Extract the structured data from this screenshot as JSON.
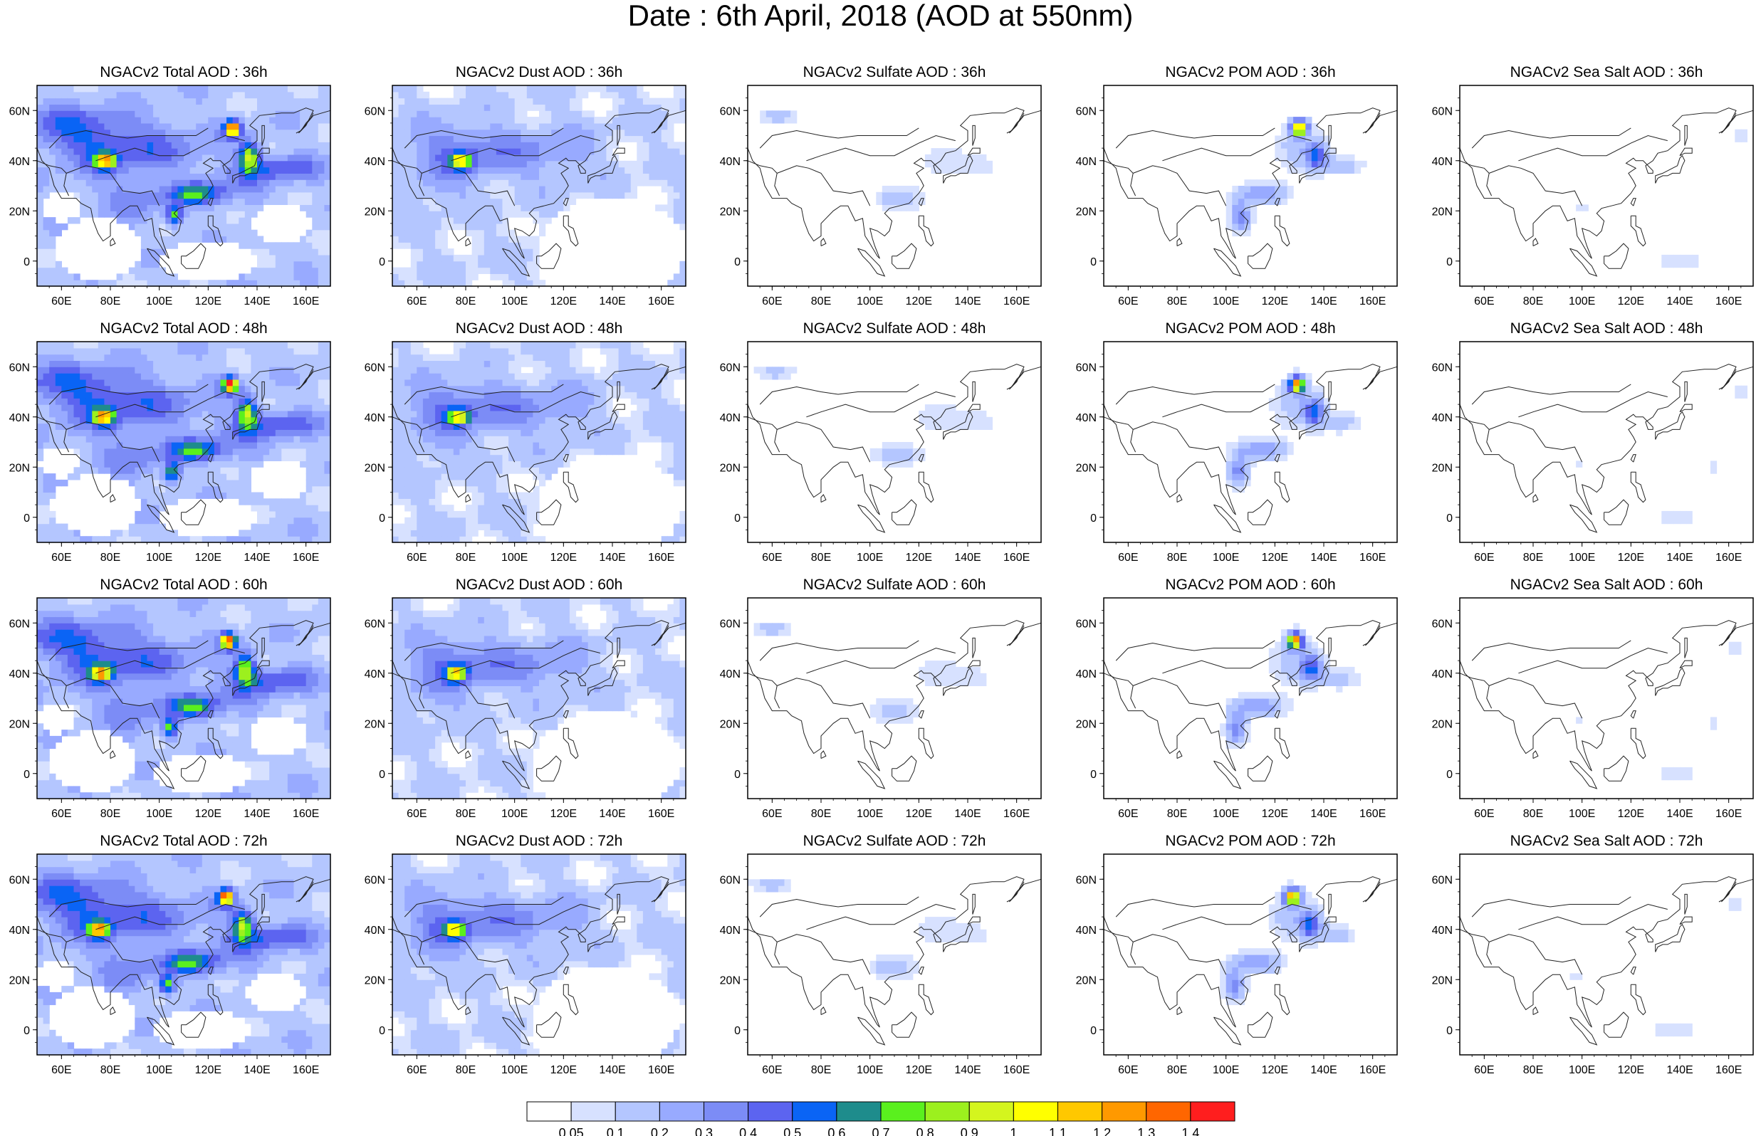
{
  "title": "Date : 6th April, 2018 (AOD at 550nm)",
  "colors": {
    "coast": "#222222",
    "frame": "#000000"
  },
  "map": {
    "lon_range": [
      50,
      170
    ],
    "lat_range": [
      -10,
      70
    ],
    "x_tick_labels": [
      "60E",
      "80E",
      "100E",
      "120E",
      "140E",
      "160E"
    ],
    "y_tick_labels": [
      "60N",
      "40N",
      "20N",
      "0"
    ]
  },
  "columns": [
    {
      "key": "total"
    },
    {
      "key": "dust"
    },
    {
      "key": "sulfate"
    },
    {
      "key": "pom"
    },
    {
      "key": "seasalt"
    }
  ],
  "rows": [
    {
      "hour": "36h",
      "titles": [
        "NGACv2 Total AOD : 36h",
        "NGACv2 Dust AOD : 36h",
        "NGACv2 Sulfate AOD : 36h",
        "NGACv2 POM AOD : 36h",
        "NGACv2 Sea Salt AOD : 36h"
      ]
    },
    {
      "hour": "48h",
      "titles": [
        "NGACv2 Total AOD : 48h",
        "NGACv2 Dust AOD : 48h",
        "NGACv2 Sulfate AOD : 48h",
        "NGACv2 POM AOD : 48h",
        "NGACv2 Sea Salt AOD : 48h"
      ]
    },
    {
      "hour": "60h",
      "titles": [
        "NGACv2 Total AOD : 60h",
        "NGACv2 Dust AOD : 60h",
        "NGACv2 Sulfate AOD : 60h",
        "NGACv2 POM AOD : 60h",
        "NGACv2 Sea Salt AOD : 60h"
      ]
    },
    {
      "hour": "72h",
      "titles": [
        "NGACv2 Total AOD : 72h",
        "NGACv2 Dust AOD : 72h",
        "NGACv2 Sulfate AOD : 72h",
        "NGACv2 POM AOD : 72h",
        "NGACv2 Sea Salt  AOD : 72h"
      ]
    }
  ],
  "colorbar": {
    "boundaries": [
      "0.05",
      "0.1",
      "0.2",
      "0.3",
      "0.4",
      "0.5",
      "0.6",
      "0.7",
      "0.8",
      "0.9",
      "1",
      "1.1",
      "1.2",
      "1.3",
      "1.4"
    ],
    "colors": [
      "#ffffff",
      "#d7e1ff",
      "#b4c6ff",
      "#98aaff",
      "#7c8cf6",
      "#5c64f0",
      "#0a64f5",
      "#1e8c8c",
      "#5af01e",
      "#9cf01e",
      "#d4f51e",
      "#ffff00",
      "#ffc800",
      "#ff9900",
      "#ff6600",
      "#ff1e1e"
    ]
  },
  "fields": {
    "total": {
      "base": 0.15,
      "blobs": [
        [
          60,
          55,
          25,
          8,
          0.25
        ],
        [
          75,
          45,
          20,
          10,
          0.25
        ],
        [
          100,
          45,
          25,
          10,
          0.2
        ],
        [
          78,
          40,
          4,
          3,
          0.9
        ],
        [
          130,
          53,
          3,
          3,
          1.3
        ],
        [
          137,
          42,
          4,
          6,
          0.7
        ],
        [
          150,
          37,
          15,
          5,
          0.35
        ],
        [
          115,
          27,
          10,
          4,
          0.5
        ],
        [
          106,
          18,
          3,
          4,
          0.6
        ],
        [
          90,
          25,
          15,
          8,
          0.2
        ],
        [
          130,
          30,
          15,
          8,
          0.15
        ]
      ],
      "clear": [
        [
          75,
          5,
          18,
          12
        ],
        [
          120,
          0,
          20,
          8
        ],
        [
          60,
          22,
          8,
          6
        ],
        [
          150,
          15,
          12,
          8
        ]
      ]
    },
    "dust": {
      "base": 0.1,
      "blobs": [
        [
          75,
          45,
          22,
          10,
          0.25
        ],
        [
          100,
          42,
          25,
          10,
          0.15
        ],
        [
          78,
          40,
          4,
          3,
          0.8
        ],
        [
          70,
          30,
          12,
          8,
          0.15
        ],
        [
          120,
          45,
          15,
          10,
          0.1
        ]
      ],
      "clear": [
        [
          140,
          5,
          30,
          20
        ],
        [
          125,
          10,
          12,
          8
        ]
      ]
    },
    "sulfate": {
      "base": 0.0,
      "blobs": [
        [
          62,
          58,
          8,
          3,
          0.15
        ],
        [
          112,
          25,
          10,
          5,
          0.15
        ],
        [
          130,
          40,
          10,
          6,
          0.1
        ],
        [
          145,
          38,
          8,
          5,
          0.08
        ]
      ],
      "clear": []
    },
    "pom": {
      "base": 0.0,
      "blobs": [
        [
          130,
          53,
          3,
          3,
          1.25
        ],
        [
          137,
          42,
          4,
          5,
          0.5
        ],
        [
          106,
          18,
          4,
          6,
          0.35
        ],
        [
          115,
          27,
          10,
          4,
          0.3
        ],
        [
          148,
          38,
          8,
          4,
          0.15
        ],
        [
          130,
          45,
          10,
          10,
          0.15
        ]
      ],
      "clear": []
    },
    "seasalt": {
      "base": 0.0,
      "blobs": [
        [
          155,
          20,
          10,
          3,
          0.06
        ],
        [
          140,
          0,
          20,
          5,
          0.06
        ],
        [
          100,
          22,
          3,
          3,
          0.07
        ],
        [
          165,
          50,
          6,
          8,
          0.06
        ]
      ],
      "clear": []
    }
  }
}
